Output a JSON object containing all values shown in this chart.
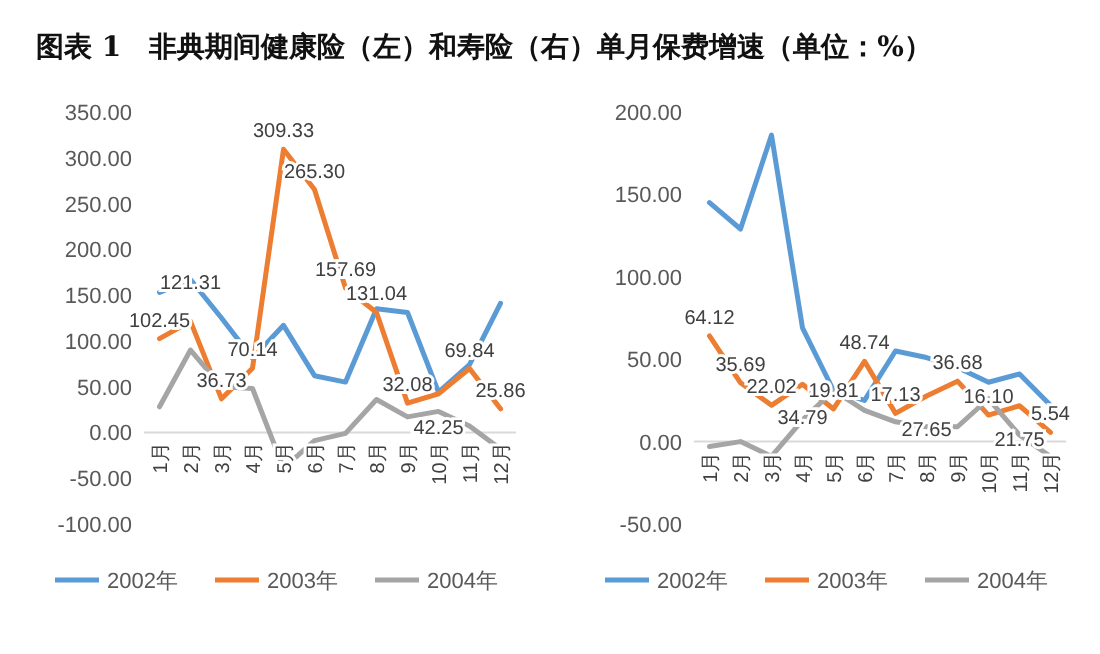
{
  "chart_data": [
    {
      "type": "line",
      "title": "图表 1　非典期间健康险（左）和寿险（右）单月保费增速（单位：%）",
      "categories": [
        "1月",
        "2月",
        "3月",
        "4月",
        "5月",
        "6月",
        "7月",
        "8月",
        "9月",
        "10月",
        "11月",
        "12月"
      ],
      "series": [
        {
          "name": "2002年",
          "color": "#5b9bd5",
          "values": [
            153,
            167,
            125,
            81,
            117,
            62,
            55,
            135,
            131,
            44,
            74,
            141
          ]
        },
        {
          "name": "2003年",
          "color": "#ed7d31",
          "values": [
            102.45,
            121.31,
            36.73,
            70.14,
            309.33,
            265.3,
            157.69,
            131.04,
            32.08,
            42.25,
            69.84,
            25.86
          ],
          "value_labels": [
            "102.45",
            "121.31",
            "36.73",
            "70.14",
            "309.33",
            "265.30",
            "157.69",
            "131.04",
            "32.08",
            "42.25",
            "69.84",
            "25.86"
          ]
        },
        {
          "name": "2004年",
          "color": "#a5a5a5",
          "values": [
            28,
            90,
            50,
            48,
            -39,
            -9,
            -1,
            36,
            17,
            23,
            7,
            -18
          ]
        }
      ],
      "ylim": [
        -100,
        350
      ],
      "yticks": [
        {
          "value": -100,
          "label": "-100.00"
        },
        {
          "value": -50,
          "label": "-50.00"
        },
        {
          "value": 0,
          "label": "0.00"
        },
        {
          "value": 50,
          "label": "50.00"
        },
        {
          "value": 100,
          "label": "100.00"
        },
        {
          "value": 150,
          "label": "150.00"
        },
        {
          "value": 200,
          "label": "200.00"
        },
        {
          "value": 250,
          "label": "250.00"
        },
        {
          "value": 300,
          "label": "300.00"
        },
        {
          "value": 350,
          "label": "350.00"
        }
      ],
      "legend": "bottom"
    },
    {
      "type": "line",
      "categories": [
        "1月",
        "2月",
        "3月",
        "4月",
        "5月",
        "6月",
        "7月",
        "8月",
        "9月",
        "10月",
        "11月",
        "12月"
      ],
      "series": [
        {
          "name": "2002年",
          "color": "#5b9bd5",
          "values": [
            145,
            129,
            186,
            69,
            31,
            25,
            55,
            51,
            45,
            36,
            41,
            22
          ]
        },
        {
          "name": "2003年",
          "color": "#ed7d31",
          "values": [
            64.12,
            35.69,
            22.02,
            34.79,
            19.81,
            48.74,
            17.13,
            27.65,
            36.68,
            16.1,
            21.75,
            5.54
          ],
          "value_labels": [
            "64.12",
            "35.69",
            "22.02",
            "34.79",
            "19.81",
            "48.74",
            "17.13",
            "27.65",
            "36.68",
            "16.10",
            "21.75",
            "5.54"
          ]
        },
        {
          "name": "2004年",
          "color": "#a5a5a5",
          "values": [
            -3,
            0,
            -9,
            13,
            31,
            19,
            12,
            9,
            9,
            26,
            4,
            -9
          ]
        }
      ],
      "ylim": [
        -50,
        200
      ],
      "yticks": [
        {
          "value": -50,
          "label": "-50.00"
        },
        {
          "value": 0,
          "label": "0.00"
        },
        {
          "value": 50,
          "label": "50.00"
        },
        {
          "value": 100,
          "label": "100.00"
        },
        {
          "value": 150,
          "label": "150.00"
        },
        {
          "value": 200,
          "label": "200.00"
        }
      ],
      "legend": "bottom"
    }
  ]
}
